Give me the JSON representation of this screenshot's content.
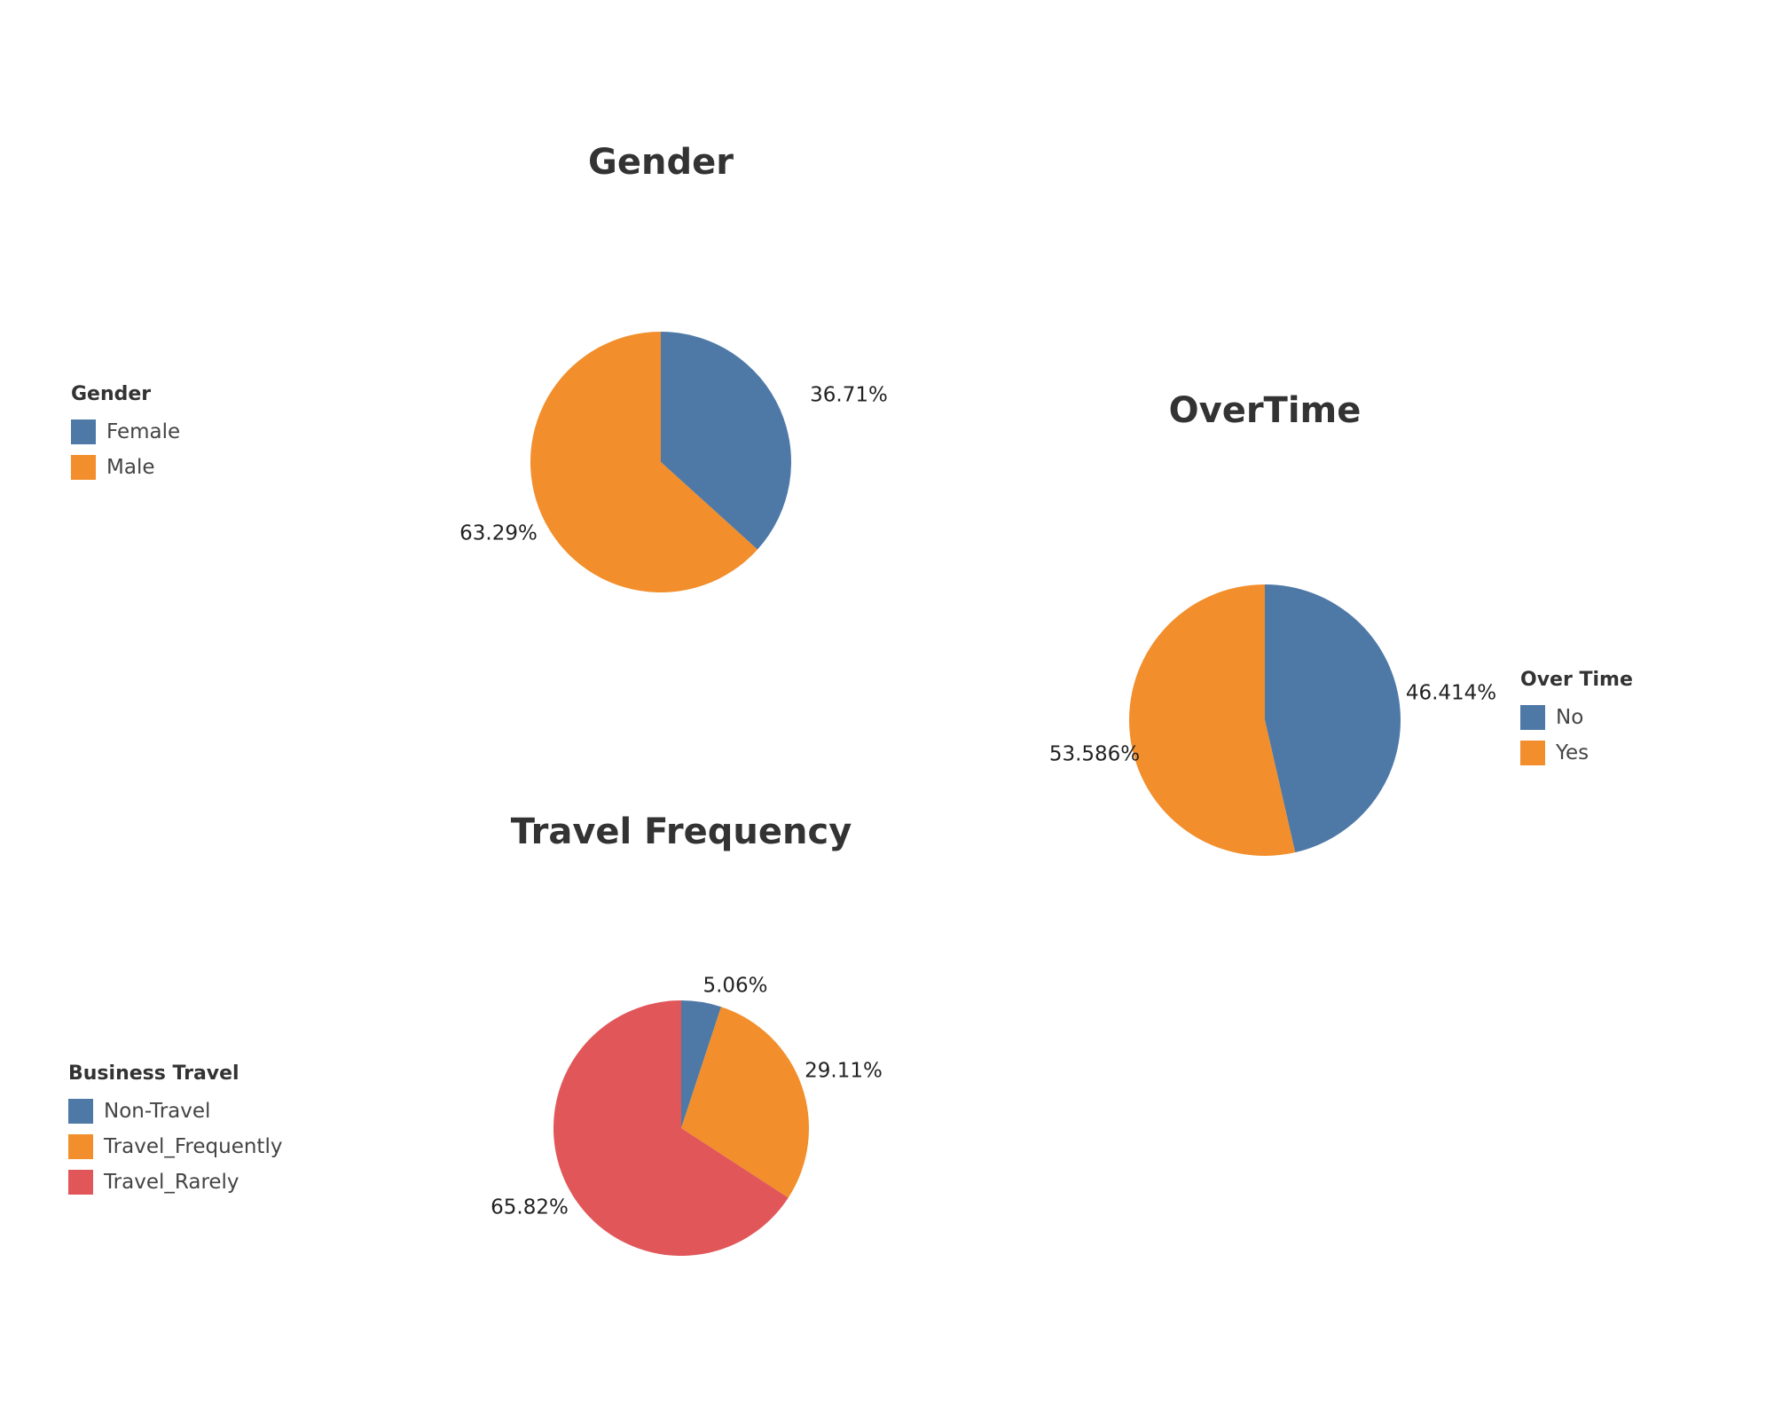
{
  "chart_data": [
    {
      "type": "pie",
      "title": "Gender",
      "legend_title": "Gender",
      "legend_placement": "left",
      "categories": [
        "Female",
        "Male"
      ],
      "values": [
        36.71,
        63.29
      ],
      "labels": [
        "36.71%",
        "63.29%"
      ],
      "colors": [
        "#4E79A7",
        "#F28E2B"
      ]
    },
    {
      "type": "pie",
      "title": "OverTime",
      "legend_title": "Over Time",
      "legend_placement": "right",
      "categories": [
        "No",
        "Yes"
      ],
      "values": [
        46.414,
        53.586
      ],
      "labels": [
        "46.414%",
        "53.586%"
      ],
      "colors": [
        "#4E79A7",
        "#F28E2B"
      ]
    },
    {
      "type": "pie",
      "title": "Travel Frequency",
      "legend_title": "Business Travel",
      "legend_placement": "left",
      "categories": [
        "Non-Travel",
        "Travel_Frequently",
        "Travel_Rarely"
      ],
      "values": [
        5.06,
        29.11,
        65.82
      ],
      "labels": [
        "5.06%",
        "29.11%",
        "65.82%"
      ],
      "colors": [
        "#4E79A7",
        "#F28E2B",
        "#E15759"
      ]
    }
  ]
}
